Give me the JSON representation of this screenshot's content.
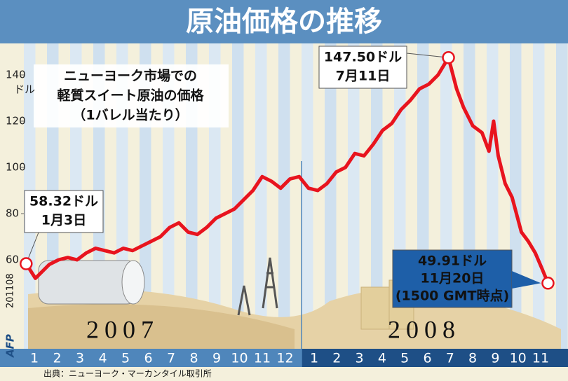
{
  "chart_data": {
    "type": "line",
    "title": "原油価格の推移",
    "subtitle": [
      "ニューヨーク市場での",
      "軽質スイート原油の価格",
      "（1バレル当たり）"
    ],
    "y_unit": "ドル",
    "x": [
      0.1,
      0.5,
      0.8,
      1.1,
      1.5,
      1.9,
      2.3,
      2.7,
      3.1,
      3.5,
      3.9,
      4.3,
      4.7,
      5.1,
      5.5,
      5.9,
      6.3,
      6.7,
      7.1,
      7.5,
      7.9,
      8.3,
      8.7,
      9.1,
      9.5,
      9.9,
      10.3,
      10.7,
      11.1,
      11.5,
      11.9,
      12.3,
      12.7,
      13.1,
      13.5,
      13.9,
      14.3,
      14.7,
      15.1,
      15.5,
      15.9,
      16.3,
      16.7,
      17.1,
      17.5,
      17.9,
      18.35,
      18.7,
      19.0,
      19.4,
      19.8,
      20.1,
      20.3,
      20.5,
      20.8,
      21.1,
      21.5,
      21.8,
      22.1,
      22.4,
      22.65
    ],
    "values": [
      58.32,
      52,
      55,
      58,
      60,
      61,
      60,
      63,
      65,
      64,
      63,
      65,
      64,
      66,
      68,
      70,
      74,
      76,
      72,
      71,
      74,
      78,
      80,
      82,
      86,
      90,
      96,
      94,
      91,
      95,
      96,
      91,
      90,
      93,
      98,
      100,
      106,
      105,
      110,
      116,
      119,
      125,
      129,
      134,
      136,
      140,
      147.5,
      134,
      126,
      118,
      115,
      107,
      120,
      105,
      93,
      87,
      72,
      68,
      63,
      56,
      49.91
    ],
    "color": "#e8141e",
    "xlim": [
      0,
      23
    ],
    "ylim": [
      40,
      150
    ],
    "yticks": [
      60,
      80,
      100,
      120,
      140
    ],
    "years": [
      "2007",
      "2008"
    ],
    "months_2007": [
      "1",
      "2",
      "3",
      "4",
      "5",
      "6",
      "7",
      "8",
      "9",
      "10",
      "11",
      "12"
    ],
    "months_2008": [
      "1",
      "2",
      "3",
      "4",
      "5",
      "6",
      "7",
      "8",
      "9",
      "10",
      "11"
    ],
    "annotations": [
      {
        "lines": [
          "58.32ドル",
          "1月3日"
        ],
        "point": 0
      },
      {
        "lines": [
          "147.50ドル",
          "7月11日"
        ],
        "point": 46
      },
      {
        "lines": [
          "49.91ドル",
          "11月20日",
          "(1500 GMT時点)"
        ],
        "point": 60
      }
    ],
    "source": "出典：ニューヨーク・マーカンタイル取引所",
    "credit": "AFP",
    "code": "201108"
  }
}
